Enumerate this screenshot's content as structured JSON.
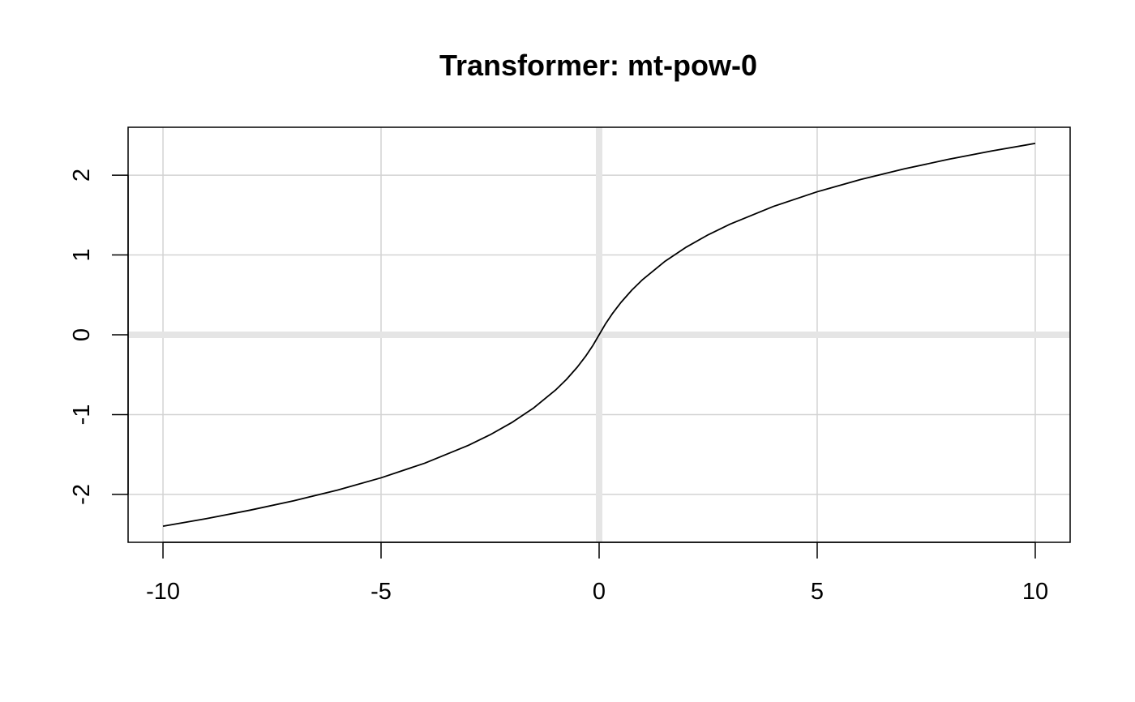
{
  "chart_data": {
    "type": "line",
    "title": "Transformer: mt-pow-0",
    "xlabel": "",
    "ylabel": "",
    "xlim": [
      -10.8,
      10.8
    ],
    "ylim": [
      -2.6,
      2.6
    ],
    "x_ticks": [
      -10,
      -5,
      0,
      5,
      10
    ],
    "y_ticks": [
      -2,
      -1,
      0,
      1,
      2
    ],
    "x_tick_labels": [
      "-10",
      "-5",
      "0",
      "5",
      "10"
    ],
    "y_tick_labels": [
      "-2",
      "-1",
      "0",
      "1",
      "2"
    ],
    "grid": true,
    "reference_lines": {
      "x": 0,
      "y": 0
    },
    "colors": {
      "line": "#000000",
      "grid": "#d3d3d3",
      "reference": "#e5e5e5",
      "axes": "#000000"
    },
    "series": [
      {
        "x": [
          -10,
          -9,
          -8,
          -7,
          -6,
          -5,
          -4,
          -3,
          -2.5,
          -2,
          -1.5,
          -1,
          -0.75,
          -0.5,
          -0.3,
          -0.15,
          0,
          0.15,
          0.3,
          0.5,
          0.75,
          1,
          1.5,
          2,
          2.5,
          3,
          4,
          5,
          6,
          7,
          8,
          9,
          10
        ],
        "y": [
          -2.398,
          -2.303,
          -2.197,
          -2.079,
          -1.946,
          -1.792,
          -1.609,
          -1.386,
          -1.253,
          -1.099,
          -0.916,
          -0.693,
          -0.56,
          -0.405,
          -0.262,
          -0.14,
          0,
          0.14,
          0.262,
          0.405,
          0.56,
          0.693,
          0.916,
          1.099,
          1.253,
          1.386,
          1.609,
          1.792,
          1.946,
          2.079,
          2.197,
          2.303,
          2.398
        ]
      }
    ]
  }
}
